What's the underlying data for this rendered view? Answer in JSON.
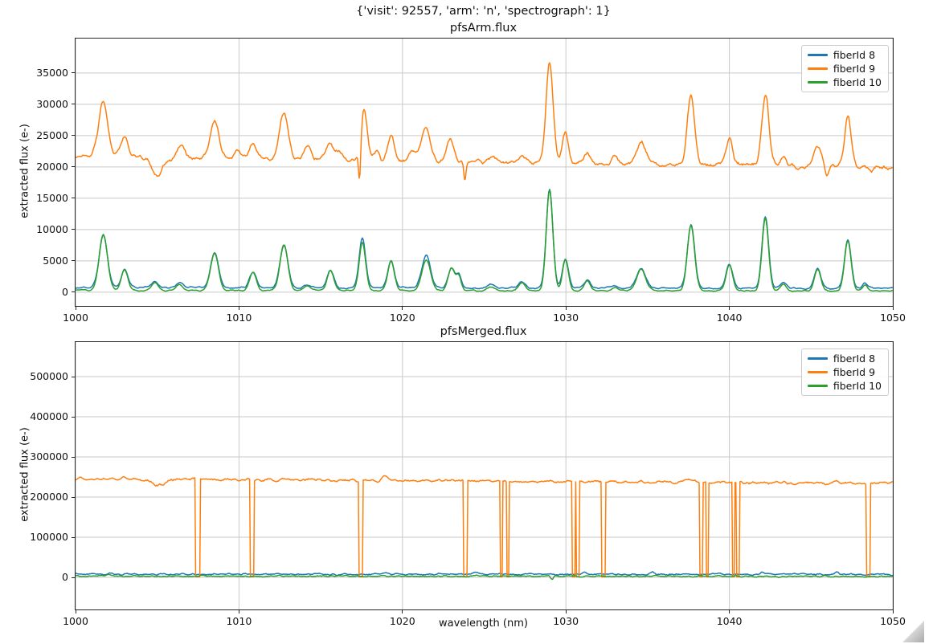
{
  "figure": {
    "suptitle": "{'visit': 92557, 'arm': 'n', 'spectrograph': 1}",
    "background": "#ffffff"
  },
  "icons": {
    "resize_grip": "gray diagonal triangle, bottom-right corner"
  },
  "colors": {
    "fiber8": "#1f77b4",
    "fiber9": "#ff7f0e",
    "fiber10": "#2ca02c",
    "grid": "#c9c9c9",
    "spine": "#262626",
    "legend_border": "#cccccc"
  },
  "chart_data": [
    {
      "type": "line",
      "title": "pfsArm.flux",
      "ylabel": "extracted flux (e-)",
      "xlim": [
        1000,
        1050
      ],
      "ylim": [
        -2200,
        40500
      ],
      "xticks": [
        1000,
        1010,
        1020,
        1030,
        1040,
        1050
      ],
      "yticks": [
        0,
        5000,
        10000,
        15000,
        20000,
        25000,
        30000,
        35000
      ],
      "grid": true,
      "legend": [
        "fiberId 8",
        "fiberId 9",
        "fiberId 10"
      ],
      "legend_position": "upper right",
      "x_step": 0.05,
      "series": [
        {
          "name": "fiberId 8",
          "color": "#1f77b4",
          "seed": 11,
          "baseline": [
            750,
            620
          ],
          "noise": 250,
          "peaks": [
            [
              1001.7,
              8400,
              0.25
            ],
            [
              1003.0,
              2900,
              0.2
            ],
            [
              1004.85,
              1000,
              0.2
            ],
            [
              1006.35,
              800,
              0.2
            ],
            [
              1008.5,
              5600,
              0.24
            ],
            [
              1010.85,
              2600,
              0.2
            ],
            [
              1012.75,
              6800,
              0.24
            ],
            [
              1014.2,
              500,
              0.18
            ],
            [
              1015.6,
              2700,
              0.2
            ],
            [
              1017.55,
              7900,
              0.2
            ],
            [
              1019.3,
              4300,
              0.2
            ],
            [
              1021.45,
              5200,
              0.26
            ],
            [
              1023.0,
              3200,
              0.2
            ],
            [
              1023.45,
              2100,
              0.15
            ],
            [
              1025.4,
              500,
              0.2
            ],
            [
              1027.3,
              1000,
              0.2
            ],
            [
              1029.0,
              15800,
              0.2
            ],
            [
              1029.97,
              4600,
              0.18
            ],
            [
              1031.3,
              1300,
              0.18
            ],
            [
              1033.0,
              400,
              0.18
            ],
            [
              1034.6,
              3100,
              0.28
            ],
            [
              1037.65,
              10100,
              0.22
            ],
            [
              1040.0,
              3800,
              0.2
            ],
            [
              1042.2,
              11400,
              0.2
            ],
            [
              1043.3,
              900,
              0.18
            ],
            [
              1045.4,
              3100,
              0.2
            ],
            [
              1047.25,
              7700,
              0.2
            ],
            [
              1048.3,
              800,
              0.15
            ]
          ]
        },
        {
          "name": "fiberId 9",
          "color": "#ff7f0e",
          "seed": 22,
          "baseline": [
            21700,
            19900
          ],
          "noise": 700,
          "peaks": [
            [
              1001.7,
              8800,
              0.28
            ],
            [
              1003.0,
              3100,
              0.22
            ],
            [
              1005.0,
              -2800,
              0.35
            ],
            [
              1006.45,
              1900,
              0.25
            ],
            [
              1008.5,
              5900,
              0.26
            ],
            [
              1009.95,
              1100,
              0.18
            ],
            [
              1010.85,
              2500,
              0.22
            ],
            [
              1012.75,
              7300,
              0.26
            ],
            [
              1014.2,
              2100,
              0.2
            ],
            [
              1015.6,
              2600,
              0.22
            ],
            [
              1016.15,
              1300,
              0.15
            ],
            [
              1017.38,
              -6000,
              0.07
            ],
            [
              1017.65,
              7900,
              0.2
            ],
            [
              1018.45,
              1400,
              0.15
            ],
            [
              1019.3,
              3700,
              0.2
            ],
            [
              1020.6,
              1500,
              0.18
            ],
            [
              1021.4,
              5300,
              0.28
            ],
            [
              1022.9,
              3500,
              0.22
            ],
            [
              1023.82,
              -2800,
              0.07
            ],
            [
              1025.5,
              800,
              0.2
            ],
            [
              1027.35,
              1200,
              0.2
            ],
            [
              1029.0,
              15800,
              0.22
            ],
            [
              1029.97,
              4900,
              0.18
            ],
            [
              1031.3,
              1600,
              0.18
            ],
            [
              1033.0,
              900,
              0.2
            ],
            [
              1034.6,
              3400,
              0.3
            ],
            [
              1037.65,
              10900,
              0.22
            ],
            [
              1040.0,
              4100,
              0.2
            ],
            [
              1042.2,
              11300,
              0.22
            ],
            [
              1043.3,
              1300,
              0.2
            ],
            [
              1045.4,
              3400,
              0.22
            ],
            [
              1045.95,
              -1500,
              0.1
            ],
            [
              1047.25,
              8100,
              0.2
            ],
            [
              1048.7,
              -800,
              0.12
            ]
          ]
        },
        {
          "name": "fiberId 10",
          "color": "#2ca02c",
          "seed": 33,
          "baseline": [
            300,
            200
          ],
          "noise": 200,
          "peaks": [
            [
              1001.7,
              9000,
              0.25
            ],
            [
              1003.0,
              3300,
              0.2
            ],
            [
              1004.85,
              1300,
              0.2
            ],
            [
              1006.35,
              1000,
              0.2
            ],
            [
              1008.5,
              6000,
              0.24
            ],
            [
              1010.85,
              3000,
              0.2
            ],
            [
              1012.75,
              7300,
              0.24
            ],
            [
              1014.2,
              700,
              0.18
            ],
            [
              1015.6,
              3100,
              0.2
            ],
            [
              1017.55,
              7600,
              0.2
            ],
            [
              1019.3,
              4700,
              0.2
            ],
            [
              1021.45,
              4900,
              0.26
            ],
            [
              1023.0,
              3600,
              0.2
            ],
            [
              1023.45,
              2300,
              0.15
            ],
            [
              1025.4,
              600,
              0.2
            ],
            [
              1027.3,
              1200,
              0.2
            ],
            [
              1029.0,
              16100,
              0.2
            ],
            [
              1029.97,
              4900,
              0.18
            ],
            [
              1031.3,
              1500,
              0.18
            ],
            [
              1033.0,
              500,
              0.18
            ],
            [
              1034.6,
              3400,
              0.28
            ],
            [
              1037.65,
              10500,
              0.22
            ],
            [
              1040.0,
              4100,
              0.2
            ],
            [
              1042.2,
              11500,
              0.2
            ],
            [
              1043.3,
              1100,
              0.18
            ],
            [
              1045.4,
              3400,
              0.2
            ],
            [
              1047.25,
              8000,
              0.2
            ],
            [
              1048.3,
              1000,
              0.15
            ]
          ]
        }
      ]
    },
    {
      "type": "line",
      "title": "pfsMerged.flux",
      "xlabel": "wavelength (nm)",
      "ylabel": "extracted flux (e-)",
      "xlim": [
        1000,
        1050
      ],
      "ylim": [
        -80000,
        586000
      ],
      "xticks": [
        1000,
        1010,
        1020,
        1030,
        1040,
        1050
      ],
      "yticks": [
        0,
        100000,
        200000,
        300000,
        400000,
        500000
      ],
      "grid": true,
      "legend": [
        "fiberId 8",
        "fiberId 9",
        "fiberId 10"
      ],
      "legend_position": "upper right",
      "x_step": 0.05,
      "series": [
        {
          "name": "fiberId 8",
          "color": "#1f77b4",
          "seed": 44,
          "baseline": [
            8000,
            7500
          ],
          "noise": 4000,
          "peaks": [
            [
              1002.1,
              4500,
              0.12
            ],
            [
              1019.0,
              5000,
              0.15
            ],
            [
              1024.4,
              5500,
              0.12
            ],
            [
              1031.1,
              4500,
              0.12
            ],
            [
              1035.3,
              5500,
              0.12
            ],
            [
              1042.0,
              6000,
              0.1
            ],
            [
              1046.6,
              5500,
              0.12
            ]
          ]
        },
        {
          "name": "fiberId 9",
          "color": "#ff7f0e",
          "seed": 55,
          "baseline": [
            246000,
            234000
          ],
          "noise": 7000,
          "peaks": [
            [
              1005.05,
              -14000,
              0.4
            ],
            [
              1018.9,
              11000,
              0.18
            ],
            [
              1037.5,
              8000,
              0.3
            ]
          ],
          "notch_floor": 1500,
          "notches": [
            [
              1007.35,
              1007.6
            ],
            [
              1010.68,
              1010.92
            ],
            [
              1017.33,
              1017.56
            ],
            [
              1023.74,
              1023.96
            ],
            [
              1025.98,
              1026.14
            ],
            [
              1026.36,
              1026.52
            ],
            [
              1030.4,
              1030.56
            ],
            [
              1030.64,
              1030.8
            ],
            [
              1032.16,
              1032.44
            ],
            [
              1038.2,
              1038.38
            ],
            [
              1038.56,
              1038.72
            ],
            [
              1040.16,
              1040.34
            ],
            [
              1040.42,
              1040.6
            ],
            [
              1048.4,
              1048.64
            ]
          ]
        },
        {
          "name": "fiberId 10",
          "color": "#2ca02c",
          "seed": 66,
          "baseline": [
            3000,
            2500
          ],
          "noise": 3500,
          "peaks": [
            [
              1002.0,
              3000,
              0.1
            ],
            [
              1029.15,
              -9000,
              0.08
            ]
          ]
        }
      ]
    }
  ]
}
